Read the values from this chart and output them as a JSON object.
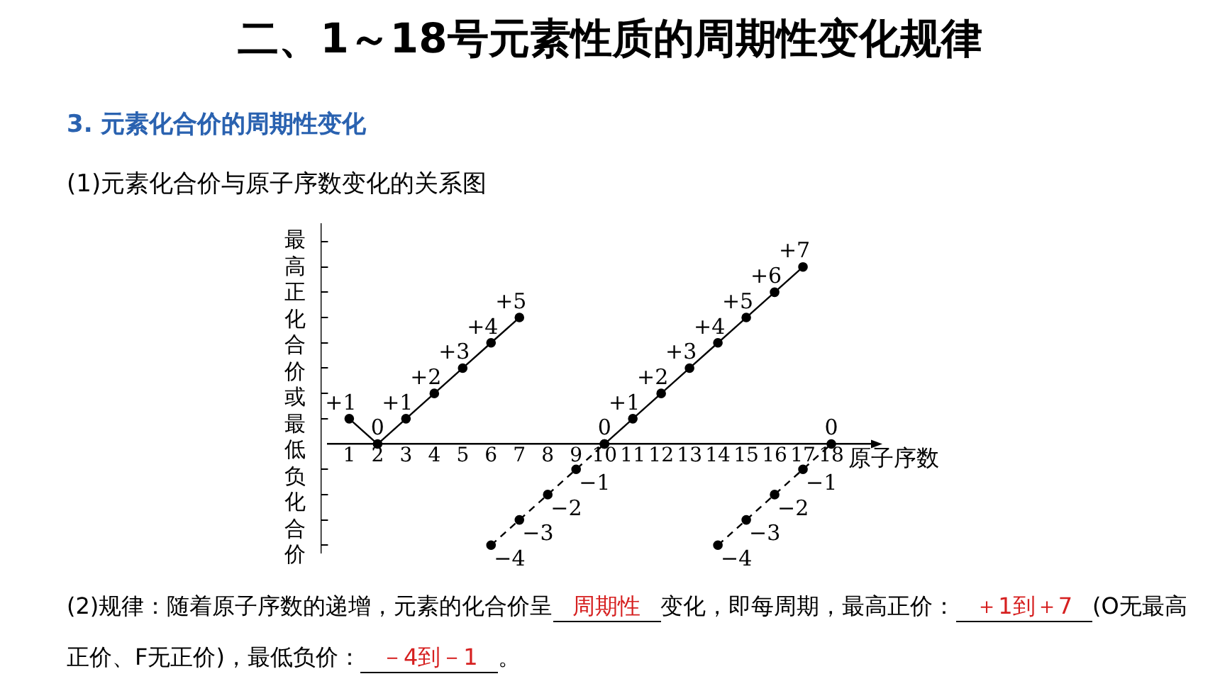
{
  "chart_data": {
    "type": "line",
    "title": "二、1～18号元素性质的周期性变化规律",
    "subtitle": "3. 元素化合价的周期性变化",
    "xlabel": "原子序数",
    "ylabel": "最高正化合价或最低负化合价",
    "annotations": [
      "(1)元素化合价与原子序数变化的关系图",
      "(2)规律：随着原子序数的递增，元素的化合价呈",
      "周期性",
      "变化，即每周期，最高正",
      "价：",
      "＋1到＋7",
      "(O无最高正价、F无正价)，最低负价：",
      "－4到－1",
      "。"
    ],
    "series": [
      {
        "color": "#000000",
        "x": [
          1,
          2,
          3,
          4,
          5,
          6,
          7
        ],
        "values": [
          1,
          0,
          1,
          2,
          3,
          4,
          5
        ],
        "value_labels": [
          "+1",
          "0",
          "+1",
          "+2",
          "+3",
          "+4",
          "+5"
        ],
        "line_style": "solid"
      },
      {
        "color": "#000000",
        "x": [
          10,
          11,
          12,
          13,
          14,
          15,
          16,
          17
        ],
        "values": [
          0,
          1,
          2,
          3,
          4,
          5,
          6,
          7
        ],
        "value_labels": [
          "0",
          "+1",
          "+2",
          "+3",
          "+4",
          "+5",
          "+6",
          "+7"
        ],
        "line_style": "solid"
      },
      {
        "color": "#000000",
        "x": [
          6,
          7,
          8,
          9,
          10
        ],
        "values": [
          -4,
          -3,
          -2,
          -1,
          0
        ],
        "value_labels": [
          "−4",
          "−3",
          "−2",
          "−1",
          null
        ],
        "line_style": "dashed"
      },
      {
        "color": "#000000",
        "x": [
          14,
          15,
          16,
          17,
          18
        ],
        "values": [
          -4,
          -3,
          -2,
          -1,
          0
        ],
        "value_labels": [
          "−4",
          "−3",
          "−2",
          "−1",
          "0"
        ],
        "line_style": "dashed"
      }
    ],
    "marker": "circle",
    "xlim": [
      0.25,
      19.5
    ],
    "ylim": [
      -4.3,
      8.7
    ],
    "xticks": [
      1,
      2,
      3,
      4,
      5,
      6,
      7,
      8,
      9,
      10,
      11,
      12,
      13,
      14,
      15,
      16,
      17,
      18
    ],
    "yticks": [
      {
        "value": -4,
        "label": null
      },
      {
        "value": -3,
        "label": null
      },
      {
        "value": -2,
        "label": null
      },
      {
        "value": -1,
        "label": null
      },
      {
        "value": 1,
        "label": null
      },
      {
        "value": 2,
        "label": null
      },
      {
        "value": 3,
        "label": null
      },
      {
        "value": 4,
        "label": null
      },
      {
        "value": 5,
        "label": null
      },
      {
        "value": 6,
        "label": null
      },
      {
        "value": 7,
        "label": null
      },
      {
        "value": 8,
        "label": null
      }
    ],
    "tick_labels": "x",
    "grid": false,
    "legend": false
  }
}
